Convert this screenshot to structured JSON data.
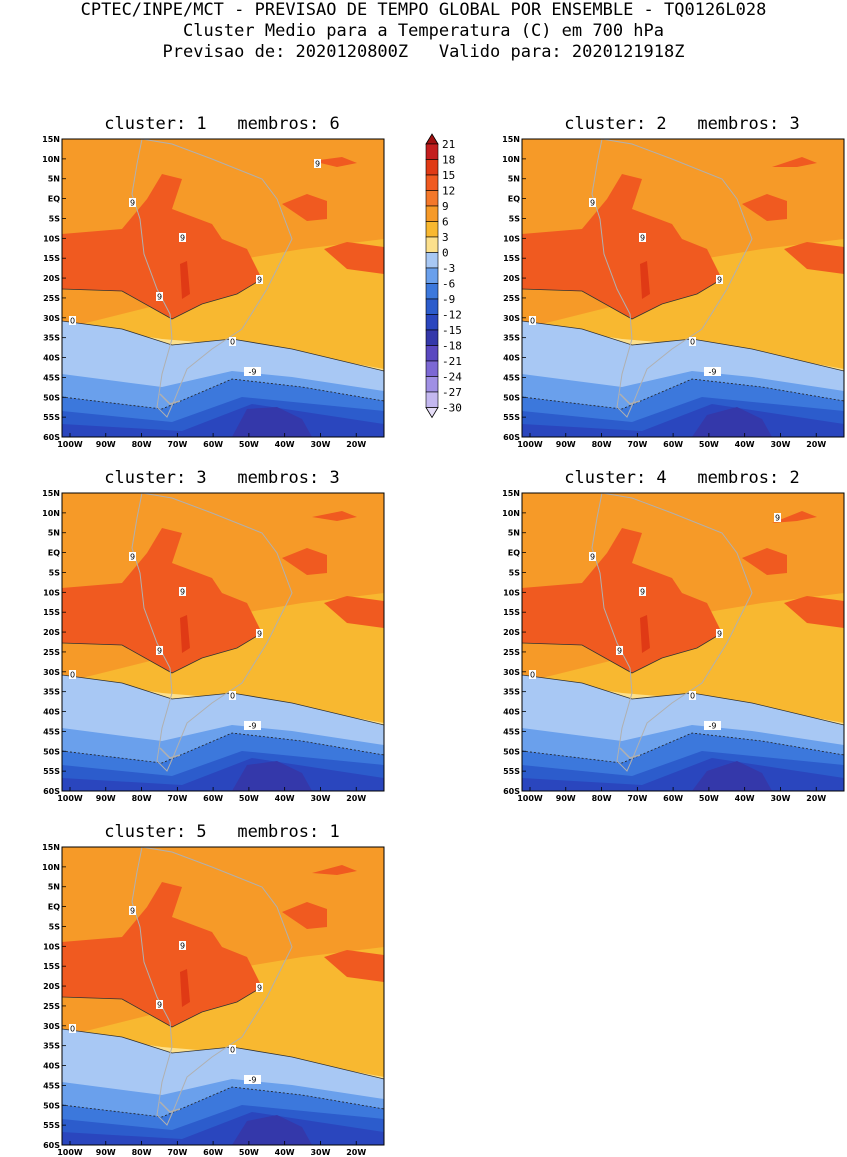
{
  "header": {
    "line1": "CPTEC/INPE/MCT - PREVISAO DE TEMPO GLOBAL POR ENSEMBLE - TQ0126L028",
    "line2": "Cluster Medio para a Temperatura (C) em 700 hPa",
    "line3": "Previsao de: 2020120800Z   Valido para: 2020121918Z"
  },
  "lat_labels": [
    "15N",
    "10N",
    "5N",
    "EQ",
    "5S",
    "10S",
    "15S",
    "20S",
    "25S",
    "30S",
    "35S",
    "40S",
    "45S",
    "50S",
    "55S",
    "60S"
  ],
  "lon_labels": [
    "100W",
    "90W",
    "80W",
    "70W",
    "60W",
    "50W",
    "40W",
    "30W",
    "20W"
  ],
  "colorbar": {
    "labels": [
      "21",
      "18",
      "15",
      "12",
      "9",
      "6",
      "3",
      "0",
      "-3",
      "-6",
      "-9",
      "-12",
      "-15",
      "-18",
      "-21",
      "-24",
      "-27",
      "-30"
    ],
    "colors": [
      "#a01010",
      "#c41e1e",
      "#e03a15",
      "#f05a20",
      "#f4782a",
      "#f69a28",
      "#f8b830",
      "#fce08c",
      "#a8c8f4",
      "#6aa0ec",
      "#3c78dc",
      "#2c5ccc",
      "#2a46be",
      "#3438aa",
      "#5a48c0",
      "#7c68d4",
      "#a090e4",
      "#c4b8f0",
      "#e6def8"
    ]
  },
  "panels": [
    {
      "title": "cluster: 1   membros: 6",
      "labels_9": [
        [
          9,
          "9"
        ],
        [
          5,
          "9"
        ],
        [
          3,
          "9"
        ],
        [
          7,
          "9"
        ],
        [
          10,
          "9"
        ]
      ],
      "zero": "0",
      "neg": "-9"
    },
    {
      "title": "cluster: 2   membros: 3",
      "labels_9": [
        [
          9,
          "9"
        ],
        [
          5,
          "9"
        ],
        [
          3,
          "9"
        ]
      ],
      "zero": "0",
      "neg": "-9"
    },
    {
      "title": "cluster: 3   membros: 3",
      "labels_9": [
        [
          9,
          "9"
        ],
        [
          5,
          "9"
        ],
        [
          3,
          "9"
        ],
        [
          10,
          "9"
        ]
      ],
      "zero": "0",
      "neg": "-9"
    },
    {
      "title": "cluster: 4   membros: 2",
      "labels_9": [
        [
          9,
          "9"
        ],
        [
          5,
          "9"
        ],
        [
          3,
          "9"
        ],
        [
          7,
          "9"
        ],
        [
          10,
          "9"
        ]
      ],
      "zero": "0",
      "neg": "-9"
    },
    {
      "title": "cluster: 5   membros: 1",
      "labels_9": [
        [
          9,
          "9"
        ],
        [
          5,
          "9"
        ],
        [
          3,
          "9"
        ],
        [
          7,
          "9"
        ]
      ],
      "zero": "0",
      "neg": "-9"
    }
  ],
  "band_colors": {
    "c9": "#f05a20",
    "c6": "#f69a28",
    "c3": "#f8b830",
    "c0": "#fce08c",
    "cm3": "#a8c8f4",
    "cm6": "#6aa0ec",
    "cm9": "#3c78dc",
    "cm12": "#2c5ccc",
    "cm15": "#2a46be",
    "cm18": "#3438aa",
    "cm21": "#5a48c0",
    "land": "#b0b0b0"
  }
}
